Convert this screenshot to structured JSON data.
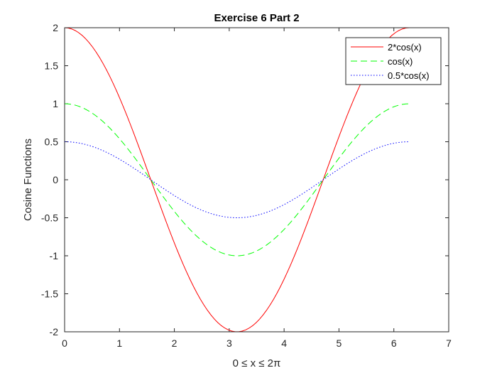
{
  "chart_data": {
    "type": "line",
    "title": "Exercise 6 Part 2",
    "xlabel": "0 ≤ x ≤ 2π",
    "ylabel": "Cosine Functions",
    "xlim": [
      0,
      7
    ],
    "ylim": [
      -2,
      2
    ],
    "xticks": [
      0,
      1,
      2,
      3,
      4,
      5,
      6,
      7
    ],
    "xtick_labels": [
      "0",
      "1",
      "2",
      "3",
      "4",
      "5",
      "6",
      "7"
    ],
    "yticks": [
      -2,
      -1.5,
      -1,
      -0.5,
      0,
      0.5,
      1,
      1.5,
      2
    ],
    "ytick_labels": [
      "-2",
      "-1.5",
      "-1",
      "-0.5",
      "0",
      "0.5",
      "1",
      "1.5",
      "2"
    ],
    "grid": false,
    "legend_position": "top-right",
    "x_sample": {
      "start": 0,
      "end": 6.2832,
      "count": 100
    },
    "series": [
      {
        "name": "2*cos(x)",
        "function": "2*cos(x)",
        "amplitude": 2,
        "color": "#ff0000",
        "style": "solid",
        "points": [
          [
            0,
            2
          ],
          [
            0.785,
            1.414
          ],
          [
            1.571,
            0
          ],
          [
            2.356,
            -1.414
          ],
          [
            3.142,
            -2
          ],
          [
            3.927,
            -1.414
          ],
          [
            4.712,
            0
          ],
          [
            5.498,
            1.414
          ],
          [
            6.283,
            2
          ]
        ]
      },
      {
        "name": "cos(x)",
        "function": "cos(x)",
        "amplitude": 1,
        "color": "#00ff00",
        "style": "dashed",
        "points": [
          [
            0,
            1
          ],
          [
            0.785,
            0.707
          ],
          [
            1.571,
            0
          ],
          [
            2.356,
            -0.707
          ],
          [
            3.142,
            -1
          ],
          [
            3.927,
            -0.707
          ],
          [
            4.712,
            0
          ],
          [
            5.498,
            0.707
          ],
          [
            6.283,
            1
          ]
        ]
      },
      {
        "name": "0.5*cos(x)",
        "function": "0.5*cos(x)",
        "amplitude": 0.5,
        "color": "#0000ff",
        "style": "dotted",
        "points": [
          [
            0,
            0.5
          ],
          [
            0.785,
            0.354
          ],
          [
            1.571,
            0
          ],
          [
            2.356,
            -0.354
          ],
          [
            3.142,
            -0.5
          ],
          [
            3.927,
            -0.354
          ],
          [
            4.712,
            0
          ],
          [
            5.498,
            0.354
          ],
          [
            6.283,
            0.5
          ]
        ]
      }
    ]
  }
}
